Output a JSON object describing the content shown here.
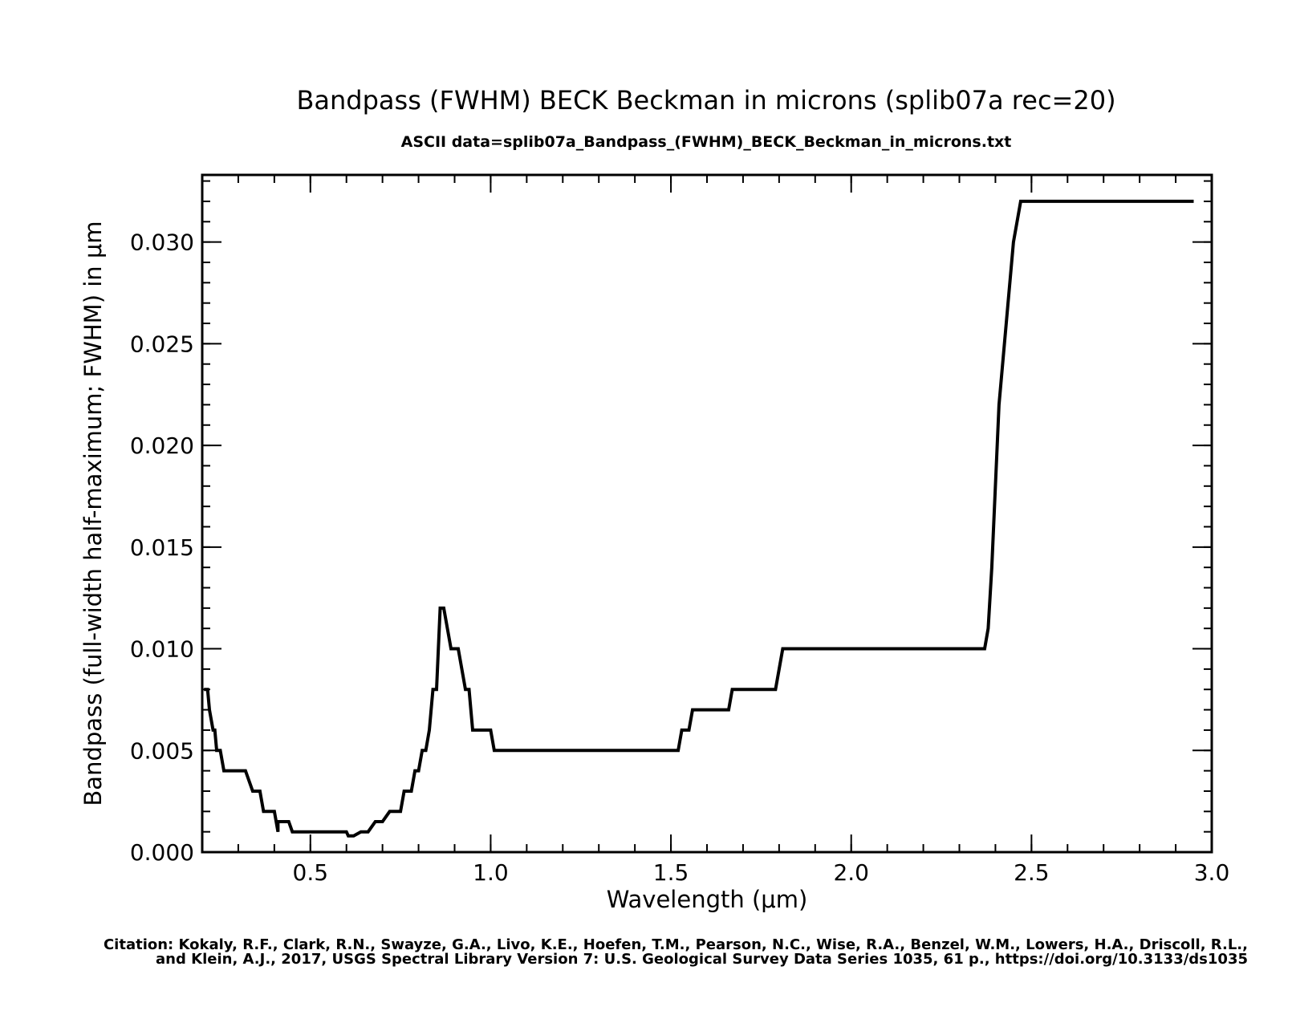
{
  "chart_data": {
    "type": "line",
    "title": "Bandpass (FWHM) BECK Beckman  in microns  (splib07a rec=20)",
    "subtitle": "ASCII data=splib07a_Bandpass_(FWHM)_BECK_Beckman_in_microns.txt",
    "xlabel": "Wavelength (μm)",
    "ylabel": "Bandpass (full-width half-maximum; FWHM) in μm",
    "xlim": [
      0.2,
      3.0
    ],
    "ylim": [
      0.0,
      0.0333
    ],
    "xticks": [
      0.5,
      1.0,
      1.5,
      2.0,
      2.5,
      3.0
    ],
    "xtick_labels": [
      "0.5",
      "1.0",
      "1.5",
      "2.0",
      "2.5",
      "3.0"
    ],
    "yticks": [
      0.0,
      0.005,
      0.01,
      0.015,
      0.02,
      0.025,
      0.03
    ],
    "ytick_labels": [
      "0.000",
      "0.005",
      "0.010",
      "0.015",
      "0.020",
      "0.025",
      "0.030"
    ],
    "grid": false,
    "series": [
      {
        "color": "#000000",
        "x": [
          0.205,
          0.21,
          0.215,
          0.22,
          0.23,
          0.235,
          0.24,
          0.245,
          0.25,
          0.26,
          0.27,
          0.28,
          0.3,
          0.32,
          0.34,
          0.36,
          0.37,
          0.38,
          0.39,
          0.4,
          0.41,
          0.41,
          0.42,
          0.43,
          0.44,
          0.45,
          0.47,
          0.5,
          0.55,
          0.6,
          0.605,
          0.62,
          0.64,
          0.66,
          0.68,
          0.7,
          0.72,
          0.74,
          0.75,
          0.76,
          0.77,
          0.78,
          0.79,
          0.8,
          0.81,
          0.82,
          0.83,
          0.84,
          0.85,
          0.86,
          0.87,
          0.88,
          0.89,
          0.9,
          0.91,
          0.92,
          0.93,
          0.94,
          0.95,
          0.96,
          0.97,
          0.98,
          0.99,
          1.0,
          1.01,
          1.02,
          1.03,
          1.1,
          1.2,
          1.3,
          1.4,
          1.5,
          1.51,
          1.52,
          1.53,
          1.54,
          1.55,
          1.56,
          1.57,
          1.6,
          1.65,
          1.66,
          1.67,
          1.68,
          1.7,
          1.75,
          1.78,
          1.79,
          1.8,
          1.81,
          1.9,
          2.0,
          2.1,
          2.2,
          2.3,
          2.35,
          2.36,
          2.37,
          2.38,
          2.39,
          2.4,
          2.41,
          2.42,
          2.43,
          2.44,
          2.45,
          2.46,
          2.47,
          2.48,
          2.49,
          2.5,
          2.6,
          2.7,
          2.8,
          2.9,
          2.95
        ],
        "values": [
          0.008,
          0.008,
          0.008,
          0.007,
          0.006,
          0.006,
          0.005,
          0.005,
          0.005,
          0.004,
          0.004,
          0.004,
          0.004,
          0.004,
          0.003,
          0.003,
          0.002,
          0.002,
          0.002,
          0.002,
          0.001,
          0.0015,
          0.0015,
          0.0015,
          0.0015,
          0.001,
          0.001,
          0.001,
          0.001,
          0.001,
          0.0008,
          0.0008,
          0.001,
          0.001,
          0.0015,
          0.0015,
          0.002,
          0.002,
          0.002,
          0.003,
          0.003,
          0.003,
          0.004,
          0.004,
          0.005,
          0.005,
          0.006,
          0.008,
          0.008,
          0.012,
          0.012,
          0.011,
          0.01,
          0.01,
          0.01,
          0.009,
          0.008,
          0.008,
          0.006,
          0.006,
          0.006,
          0.006,
          0.006,
          0.006,
          0.005,
          0.005,
          0.005,
          0.005,
          0.005,
          0.005,
          0.005,
          0.005,
          0.005,
          0.005,
          0.006,
          0.006,
          0.006,
          0.007,
          0.007,
          0.007,
          0.007,
          0.007,
          0.008,
          0.008,
          0.008,
          0.008,
          0.008,
          0.008,
          0.009,
          0.01,
          0.01,
          0.01,
          0.01,
          0.01,
          0.01,
          0.01,
          0.01,
          0.01,
          0.011,
          0.014,
          0.018,
          0.022,
          0.024,
          0.026,
          0.028,
          0.03,
          0.031,
          0.032,
          0.032,
          0.032,
          0.032,
          0.032,
          0.032,
          0.032,
          0.032,
          0.032
        ]
      }
    ]
  },
  "citation": {
    "line1": "Citation: Kokaly, R.F., Clark, R.N., Swayze, G.A., Livo, K.E., Hoefen, T.M., Pearson, N.C., Wise, R.A., Benzel, W.M., Lowers, H.A., Driscoll, R.L.,",
    "line2": "and Klein, A.J., 2017, USGS Spectral Library Version 7: U.S. Geological Survey Data Series 1035, 61 p., https://doi.org/10.3133/ds1035"
  }
}
